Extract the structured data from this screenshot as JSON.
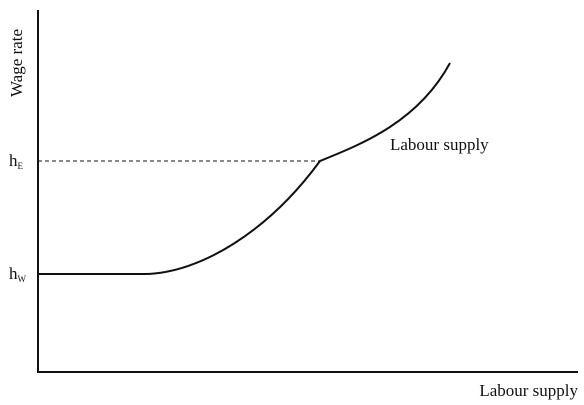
{
  "axes": {
    "y_label": "Wage rate",
    "x_label": "Labour supply"
  },
  "curve": {
    "label": "Labour supply"
  },
  "levels": [
    {
      "label": "h",
      "subscript": "W"
    },
    {
      "label": "h",
      "subscript": "E"
    }
  ]
}
